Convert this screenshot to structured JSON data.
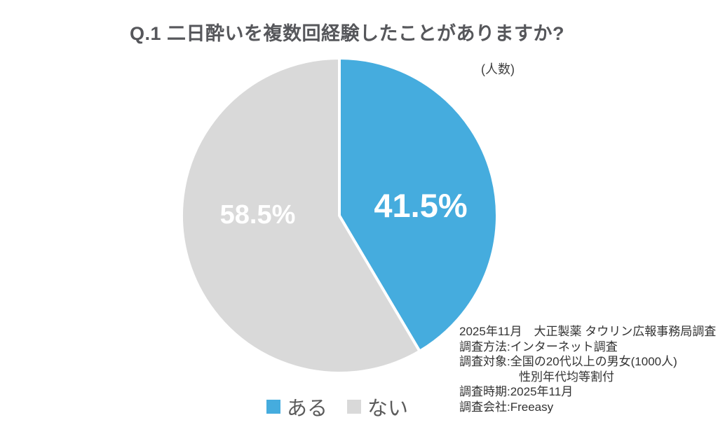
{
  "page": {
    "background": "#FFFFFF"
  },
  "header": {
    "title": "Q.1 二日酔いを複数回経験したことがありますか?"
  },
  "chart_data": {
    "type": "pie",
    "title": "Q.1 二日酔いを複数回経験したことがありますか?",
    "unit_note": "(人数)",
    "start_angle_deg": 0,
    "direction": "clockwise",
    "legend_position": "bottom",
    "separator_color": "#FFFFFF",
    "slices": [
      {
        "label": "ある",
        "value": 41.5,
        "display": "41.5%",
        "color": "#45ACDE"
      },
      {
        "label": "ない",
        "value": 58.5,
        "display": "58.5%",
        "color": "#D9D9D9"
      }
    ]
  },
  "footnote": {
    "lines": [
      "2025年11月　大正製薬 タウリン広報事務局調査",
      "調査方法:インターネット調査",
      "調査対象:全国の20代以上の男女(1000人)",
      "性別年代均等割付",
      "調査時期:2025年11月",
      "調査会社:Freeasy"
    ]
  }
}
